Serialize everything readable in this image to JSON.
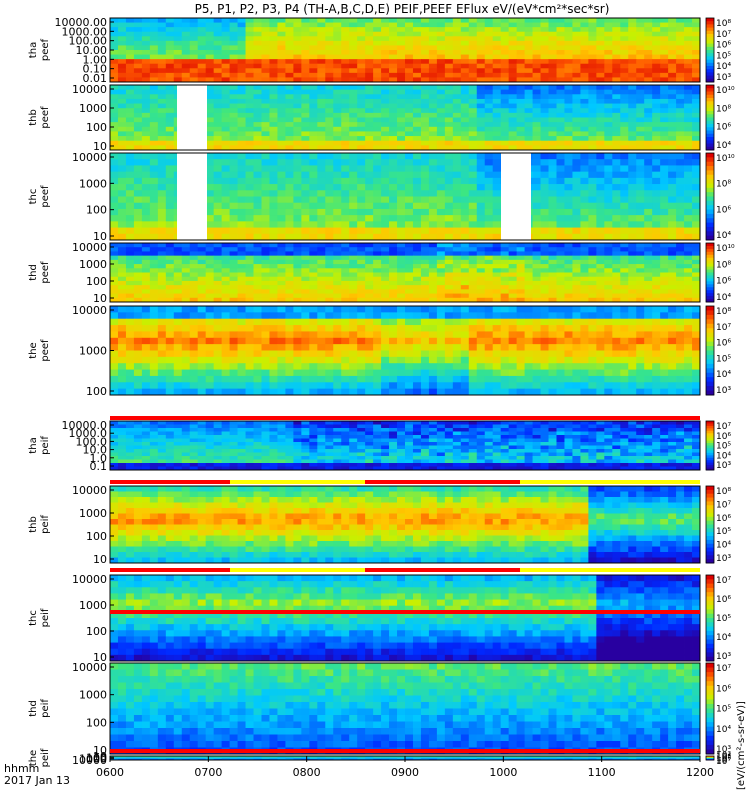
{
  "title": "P5, P1, P2, P3, P4 (TH-A,B,C,D,E) PEIF,PEEF EFlux eV/(eV*cm²*sec*sr)",
  "time_label": "hhmm",
  "date_label": "2017 Jan 13",
  "colorbar_units_label": "[eV/(cm²-s-sr-eV)]",
  "colors": {
    "low": "#3a00c8",
    "mid": "#00e0a0",
    "high": "#ff2000",
    "bar_red": "#ff0000",
    "bar_yellow": "#ffff00",
    "gap": "#ffffff"
  },
  "chart_data": {
    "type": "heatmap",
    "x_ticks": [
      "0600",
      "0700",
      "0800",
      "0900",
      "1000",
      "1100",
      "1200"
    ],
    "x_range": [
      "0600",
      "1200"
    ],
    "panels": [
      {
        "probe": "tha",
        "species": "peef",
        "y_ticks": [
          "10000.00",
          "1000.00",
          "100.00",
          "10.00",
          "1.00",
          "0.10",
          "0.01"
        ],
        "cbar_ticks": [
          "10⁸",
          "10⁷",
          "10⁶",
          "10⁵",
          "10⁴",
          "10³"
        ]
      },
      {
        "probe": "thb",
        "species": "peef",
        "y_ticks": [
          "10000",
          "1000",
          "100",
          "10"
        ],
        "cbar_ticks": [
          "10¹⁰",
          "10⁸",
          "10⁶",
          "10⁴"
        ]
      },
      {
        "probe": "thc",
        "species": "peef",
        "y_ticks": [
          "10000",
          "1000",
          "100",
          "10"
        ],
        "cbar_ticks": [
          "10¹⁰",
          "10⁸",
          "10⁶",
          "10⁴"
        ]
      },
      {
        "probe": "thd",
        "species": "peef",
        "y_ticks": [
          "10000",
          "1000",
          "100",
          "10"
        ],
        "cbar_ticks": [
          "10¹⁰",
          "10⁸",
          "10⁶",
          "10⁴"
        ]
      },
      {
        "probe": "the",
        "species": "peef",
        "y_ticks": [
          "10000",
          "1000",
          "100"
        ],
        "cbar_ticks": [
          "10⁸",
          "10⁷",
          "10⁶",
          "10⁵",
          "10⁴",
          "10³"
        ]
      },
      {
        "probe": "tha",
        "species": "peif",
        "y_ticks": [
          "10000.0",
          "1000.0",
          "100.0",
          "10.0",
          "1.0",
          "0.1"
        ],
        "cbar_ticks": [
          "10⁷",
          "10⁶",
          "10⁵",
          "10⁴",
          "10³"
        ]
      },
      {
        "probe": "thb",
        "species": "peif",
        "y_ticks": [
          "10000",
          "1000",
          "100",
          "10"
        ],
        "cbar_ticks": [
          "10⁸",
          "10⁷",
          "10⁶",
          "10⁵",
          "10⁴",
          "10³"
        ]
      },
      {
        "probe": "thc",
        "species": "peif",
        "y_ticks": [
          "10000",
          "1000",
          "100",
          "10"
        ],
        "cbar_ticks": [
          "10⁷",
          "10⁶",
          "10⁵",
          "10⁴",
          "10³"
        ]
      },
      {
        "probe": "thd",
        "species": "peif",
        "y_ticks": [
          "10000",
          "1000",
          "100",
          "10"
        ],
        "cbar_ticks": [
          "10⁷",
          "10⁶",
          "10⁵",
          "10⁴",
          "10³"
        ]
      },
      {
        "probe": "the",
        "species": "peif",
        "y_ticks": [
          "10000",
          "1000",
          "100",
          "10"
        ],
        "cbar_ticks": [
          "10⁷",
          "10⁶",
          "10⁵",
          "10⁴",
          "10³"
        ]
      }
    ]
  }
}
